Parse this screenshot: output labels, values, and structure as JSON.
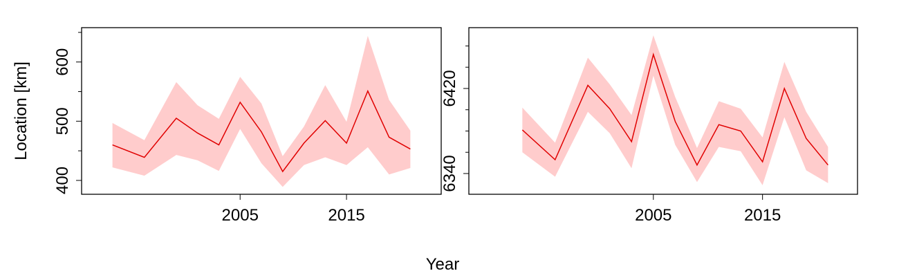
{
  "xlabel": "Year",
  "chart_data": [
    {
      "type": "band-line",
      "ylabel": "Location [km]",
      "color": "#e00000",
      "band_color": "#ffcccc",
      "x": [
        1993,
        1996,
        1999,
        2001,
        2003,
        2005,
        2007,
        2009,
        2011,
        2013,
        2015,
        2017,
        2019,
        2021
      ],
      "values": [
        460,
        439,
        505,
        480,
        460,
        532,
        482,
        415,
        463,
        501,
        463,
        551,
        473,
        453
      ],
      "upper": [
        497,
        468,
        566,
        527,
        504,
        575,
        530,
        441,
        491,
        561,
        499,
        644,
        536,
        484
      ],
      "lower": [
        422,
        408,
        443,
        434,
        416,
        487,
        429,
        389,
        426,
        439,
        426,
        456,
        410,
        421
      ],
      "xlim": [
        1990.1,
        2023.9
      ],
      "xticks": [
        2005,
        2015
      ],
      "ylim": [
        376.6,
        658
      ],
      "yticks": [
        400,
        500,
        600
      ],
      "yminorticks": [
        450,
        550,
        650
      ]
    },
    {
      "type": "band-line",
      "color": "#e00000",
      "band_color": "#ffcccc",
      "x": [
        1993,
        1996,
        1999,
        2001,
        2003,
        2005,
        2007,
        2009,
        2011,
        2013,
        2015,
        2017,
        2019,
        2021
      ],
      "values": [
        6381,
        6353,
        6423,
        6401,
        6370,
        6452,
        6389,
        6348,
        6386,
        6380,
        6351,
        6420,
        6373,
        6348
      ],
      "upper": [
        6402,
        6369,
        6449,
        6424,
        6395,
        6470,
        6412,
        6364,
        6408,
        6401,
        6374,
        6445,
        6398,
        6365
      ],
      "lower": [
        6360,
        6337,
        6398,
        6378,
        6345,
        6432,
        6367,
        6332,
        6365,
        6361,
        6329,
        6393,
        6343,
        6331
      ],
      "xlim": [
        1988.1,
        2023.7
      ],
      "xticks": [
        2005,
        2015
      ],
      "ylim": [
        6320.5,
        6477.2
      ],
      "yticks": [
        6340,
        6420
      ],
      "yminorticks": [
        6360,
        6380,
        6400,
        6440,
        6460
      ]
    }
  ]
}
